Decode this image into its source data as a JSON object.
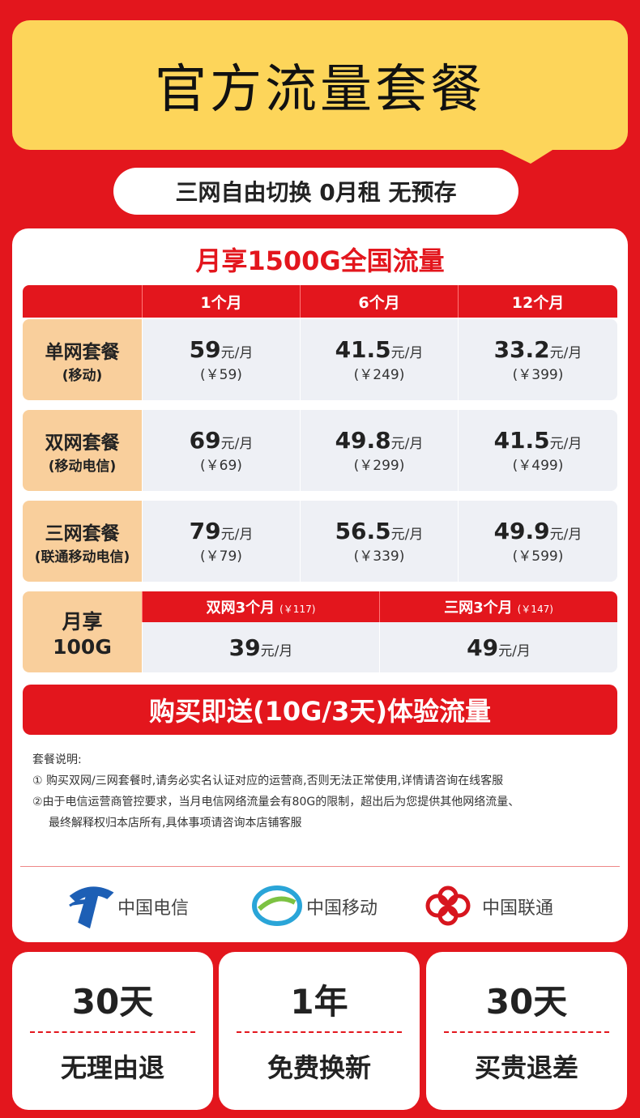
{
  "header": {
    "title": "官方流量套餐",
    "subtitle": "三网自由切换 0月租 无预存"
  },
  "main": {
    "title": "月享1500G全国流量"
  },
  "table": {
    "columns": [
      "1个月",
      "6个月",
      "12个月"
    ],
    "rows": [
      {
        "name": "单网套餐",
        "note": "(移动)",
        "cells": [
          {
            "price": "59",
            "unit": "元/月",
            "total": "(￥59)"
          },
          {
            "price": "41.5",
            "unit": "元/月",
            "total": "(￥249)"
          },
          {
            "price": "33.2",
            "unit": "元/月",
            "total": "(￥399)"
          }
        ]
      },
      {
        "name": "双网套餐",
        "note": "(移动电信)",
        "cells": [
          {
            "price": "69",
            "unit": "元/月",
            "total": "(￥69)"
          },
          {
            "price": "49.8",
            "unit": "元/月",
            "total": "(￥299)"
          },
          {
            "price": "41.5",
            "unit": "元/月",
            "total": "(￥499)"
          }
        ]
      },
      {
        "name": "三网套餐",
        "note": "(联通移动电信)",
        "cells": [
          {
            "price": "79",
            "unit": "元/月",
            "total": "(￥79)"
          },
          {
            "price": "56.5",
            "unit": "元/月",
            "total": "(￥339)"
          },
          {
            "price": "49.9",
            "unit": "元/月",
            "total": "(￥599)"
          }
        ]
      }
    ]
  },
  "extra": {
    "name": [
      "月享",
      "100G"
    ],
    "options": [
      {
        "title": "双网3个月",
        "total": "(￥117)",
        "price": "39",
        "unit": "元/月"
      },
      {
        "title": "三网3个月",
        "total": "(￥147)",
        "price": "49",
        "unit": "元/月"
      }
    ]
  },
  "banner": "购买即送(10G/3天)体验流量",
  "notes": {
    "title": "套餐说明:",
    "lines": [
      "① 购买双网/三网套餐时,请务必实名认证对应的运营商,否则无法正常使用,详情请咨询在线客服",
      "②由于电信运营商管控要求，当月电信网络流量会有80G的限制，超出后为您提供其他网络流量、",
      "最终解释权归本店所有,具体事项请咨询本店铺客服"
    ]
  },
  "carriers": [
    "中国电信",
    "中国移动",
    "中国联通"
  ],
  "guarantees": [
    {
      "top": "30天",
      "bottom": "无理由退"
    },
    {
      "top": "1年",
      "bottom": "免费换新"
    },
    {
      "top": "30天",
      "bottom": "买贵退差"
    }
  ]
}
